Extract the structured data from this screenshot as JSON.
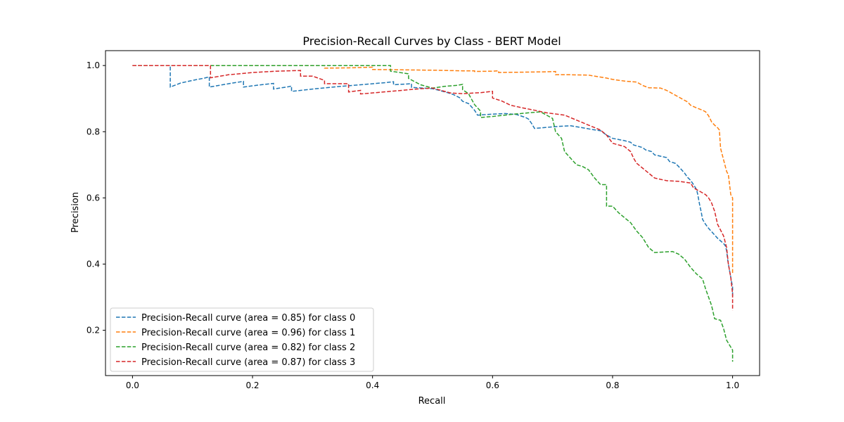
{
  "chart_data": {
    "type": "line",
    "title": "Precision-Recall Curves by Class - BERT Model",
    "xlabel": "Recall",
    "ylabel": "Precision",
    "xlim": [
      -0.045,
      1.045
    ],
    "ylim": [
      0.063,
      1.045
    ],
    "xticks": [
      0.0,
      0.2,
      0.4,
      0.6,
      0.8,
      1.0
    ],
    "xtick_labels": [
      "0.0",
      "0.2",
      "0.4",
      "0.6",
      "0.8",
      "1.0"
    ],
    "yticks": [
      0.2,
      0.4,
      0.6,
      0.8,
      1.0
    ],
    "ytick_labels": [
      "0.2",
      "0.4",
      "0.6",
      "0.8",
      "1.0"
    ],
    "grid": false,
    "legend_position": "lower-left",
    "line_style": "dashed",
    "series": [
      {
        "name": "Precision-Recall curve (area = 0.85) for class 0",
        "color": "#1f77b4",
        "points": [
          [
            0.0,
            1.0
          ],
          [
            0.063,
            1.0
          ],
          [
            0.063,
            0.935
          ],
          [
            0.08,
            0.947
          ],
          [
            0.1,
            0.955
          ],
          [
            0.12,
            0.962
          ],
          [
            0.128,
            0.966
          ],
          [
            0.128,
            0.935
          ],
          [
            0.15,
            0.942
          ],
          [
            0.17,
            0.948
          ],
          [
            0.185,
            0.952
          ],
          [
            0.185,
            0.935
          ],
          [
            0.21,
            0.941
          ],
          [
            0.235,
            0.946
          ],
          [
            0.235,
            0.929
          ],
          [
            0.26,
            0.936
          ],
          [
            0.265,
            0.938
          ],
          [
            0.265,
            0.922
          ],
          [
            0.3,
            0.929
          ],
          [
            0.34,
            0.936
          ],
          [
            0.38,
            0.942
          ],
          [
            0.42,
            0.948
          ],
          [
            0.435,
            0.951
          ],
          [
            0.435,
            0.942
          ],
          [
            0.465,
            0.945
          ],
          [
            0.465,
            0.934
          ],
          [
            0.5,
            0.93
          ],
          [
            0.515,
            0.923
          ],
          [
            0.525,
            0.918
          ],
          [
            0.535,
            0.912
          ],
          [
            0.545,
            0.903
          ],
          [
            0.55,
            0.892
          ],
          [
            0.56,
            0.885
          ],
          [
            0.565,
            0.875
          ],
          [
            0.57,
            0.865
          ],
          [
            0.575,
            0.85
          ],
          [
            0.6,
            0.853
          ],
          [
            0.62,
            0.855
          ],
          [
            0.64,
            0.852
          ],
          [
            0.655,
            0.843
          ],
          [
            0.66,
            0.838
          ],
          [
            0.665,
            0.825
          ],
          [
            0.67,
            0.81
          ],
          [
            0.69,
            0.813
          ],
          [
            0.71,
            0.816
          ],
          [
            0.73,
            0.818
          ],
          [
            0.75,
            0.812
          ],
          [
            0.765,
            0.807
          ],
          [
            0.78,
            0.803
          ],
          [
            0.79,
            0.79
          ],
          [
            0.8,
            0.78
          ],
          [
            0.82,
            0.773
          ],
          [
            0.83,
            0.768
          ],
          [
            0.835,
            0.76
          ],
          [
            0.85,
            0.752
          ],
          [
            0.855,
            0.745
          ],
          [
            0.865,
            0.74
          ],
          [
            0.87,
            0.73
          ],
          [
            0.89,
            0.722
          ],
          [
            0.895,
            0.71
          ],
          [
            0.905,
            0.704
          ],
          [
            0.91,
            0.695
          ],
          [
            0.915,
            0.685
          ],
          [
            0.92,
            0.675
          ],
          [
            0.925,
            0.662
          ],
          [
            0.93,
            0.653
          ],
          [
            0.935,
            0.64
          ],
          [
            0.94,
            0.625
          ],
          [
            0.942,
            0.61
          ],
          [
            0.945,
            0.58
          ],
          [
            0.948,
            0.555
          ],
          [
            0.95,
            0.535
          ],
          [
            0.955,
            0.52
          ],
          [
            0.96,
            0.508
          ],
          [
            0.965,
            0.498
          ],
          [
            0.97,
            0.488
          ],
          [
            0.975,
            0.478
          ],
          [
            0.98,
            0.47
          ],
          [
            0.985,
            0.462
          ],
          [
            0.988,
            0.455
          ],
          [
            0.99,
            0.44
          ],
          [
            0.992,
            0.41
          ],
          [
            0.995,
            0.38
          ],
          [
            0.997,
            0.36
          ],
          [
            1.0,
            0.33
          ],
          [
            1.0,
            0.3
          ]
        ]
      },
      {
        "name": "Precision-Recall curve (area = 0.96) for class 1",
        "color": "#ff7f0e",
        "points": [
          [
            0.0,
            1.0
          ],
          [
            0.32,
            1.0
          ],
          [
            0.32,
            0.992
          ],
          [
            0.36,
            0.993
          ],
          [
            0.38,
            0.994
          ],
          [
            0.4,
            0.995
          ],
          [
            0.4,
            0.988
          ],
          [
            0.45,
            0.987
          ],
          [
            0.5,
            0.986
          ],
          [
            0.55,
            0.984
          ],
          [
            0.57,
            0.984
          ],
          [
            0.57,
            0.982
          ],
          [
            0.6,
            0.983
          ],
          [
            0.61,
            0.984
          ],
          [
            0.61,
            0.979
          ],
          [
            0.65,
            0.98
          ],
          [
            0.69,
            0.981
          ],
          [
            0.705,
            0.982
          ],
          [
            0.705,
            0.972
          ],
          [
            0.73,
            0.972
          ],
          [
            0.76,
            0.971
          ],
          [
            0.77,
            0.968
          ],
          [
            0.79,
            0.962
          ],
          [
            0.8,
            0.958
          ],
          [
            0.82,
            0.953
          ],
          [
            0.84,
            0.95
          ],
          [
            0.845,
            0.945
          ],
          [
            0.85,
            0.94
          ],
          [
            0.86,
            0.933
          ],
          [
            0.88,
            0.932
          ],
          [
            0.89,
            0.925
          ],
          [
            0.9,
            0.915
          ],
          [
            0.91,
            0.905
          ],
          [
            0.92,
            0.895
          ],
          [
            0.925,
            0.89
          ],
          [
            0.93,
            0.88
          ],
          [
            0.94,
            0.872
          ],
          [
            0.95,
            0.865
          ],
          [
            0.955,
            0.86
          ],
          [
            0.96,
            0.848
          ],
          [
            0.965,
            0.83
          ],
          [
            0.97,
            0.82
          ],
          [
            0.975,
            0.812
          ],
          [
            0.978,
            0.805
          ],
          [
            0.98,
            0.75
          ],
          [
            0.985,
            0.715
          ],
          [
            0.99,
            0.68
          ],
          [
            0.993,
            0.67
          ],
          [
            0.995,
            0.64
          ],
          [
            0.997,
            0.61
          ],
          [
            1.0,
            0.6
          ],
          [
            1.0,
            0.37
          ]
        ]
      },
      {
        "name": "Precision-Recall curve (area = 0.82) for class 2",
        "color": "#2ca02c",
        "points": [
          [
            0.0,
            1.0
          ],
          [
            0.43,
            1.0
          ],
          [
            0.43,
            0.983
          ],
          [
            0.46,
            0.975
          ],
          [
            0.46,
            0.961
          ],
          [
            0.48,
            0.942
          ],
          [
            0.5,
            0.932
          ],
          [
            0.52,
            0.937
          ],
          [
            0.54,
            0.94
          ],
          [
            0.55,
            0.943
          ],
          [
            0.55,
            0.927
          ],
          [
            0.56,
            0.915
          ],
          [
            0.565,
            0.898
          ],
          [
            0.57,
            0.882
          ],
          [
            0.58,
            0.862
          ],
          [
            0.58,
            0.843
          ],
          [
            0.6,
            0.846
          ],
          [
            0.63,
            0.852
          ],
          [
            0.66,
            0.857
          ],
          [
            0.68,
            0.86
          ],
          [
            0.7,
            0.84
          ],
          [
            0.705,
            0.8
          ],
          [
            0.715,
            0.78
          ],
          [
            0.72,
            0.74
          ],
          [
            0.73,
            0.72
          ],
          [
            0.74,
            0.7
          ],
          [
            0.75,
            0.695
          ],
          [
            0.76,
            0.685
          ],
          [
            0.77,
            0.66
          ],
          [
            0.78,
            0.64
          ],
          [
            0.79,
            0.64
          ],
          [
            0.79,
            0.575
          ],
          [
            0.8,
            0.575
          ],
          [
            0.81,
            0.555
          ],
          [
            0.82,
            0.54
          ],
          [
            0.83,
            0.525
          ],
          [
            0.84,
            0.5
          ],
          [
            0.85,
            0.48
          ],
          [
            0.86,
            0.45
          ],
          [
            0.87,
            0.435
          ],
          [
            0.9,
            0.438
          ],
          [
            0.91,
            0.43
          ],
          [
            0.92,
            0.415
          ],
          [
            0.93,
            0.39
          ],
          [
            0.94,
            0.37
          ],
          [
            0.95,
            0.355
          ],
          [
            0.955,
            0.325
          ],
          [
            0.965,
            0.275
          ],
          [
            0.97,
            0.235
          ],
          [
            0.98,
            0.23
          ],
          [
            0.985,
            0.205
          ],
          [
            0.99,
            0.17
          ],
          [
            0.995,
            0.155
          ],
          [
            1.0,
            0.14
          ],
          [
            1.0,
            0.105
          ]
        ]
      },
      {
        "name": "Precision-Recall curve (area = 0.87) for class 3",
        "color": "#d62728",
        "points": [
          [
            0.0,
            1.0
          ],
          [
            0.13,
            1.0
          ],
          [
            0.13,
            0.963
          ],
          [
            0.16,
            0.972
          ],
          [
            0.2,
            0.979
          ],
          [
            0.24,
            0.983
          ],
          [
            0.28,
            0.985
          ],
          [
            0.28,
            0.968
          ],
          [
            0.3,
            0.968
          ],
          [
            0.32,
            0.955
          ],
          [
            0.32,
            0.945
          ],
          [
            0.36,
            0.945
          ],
          [
            0.36,
            0.92
          ],
          [
            0.38,
            0.925
          ],
          [
            0.38,
            0.914
          ],
          [
            0.43,
            0.922
          ],
          [
            0.48,
            0.93
          ],
          [
            0.5,
            0.932
          ],
          [
            0.53,
            0.917
          ],
          [
            0.55,
            0.915
          ],
          [
            0.58,
            0.918
          ],
          [
            0.6,
            0.922
          ],
          [
            0.6,
            0.902
          ],
          [
            0.615,
            0.893
          ],
          [
            0.63,
            0.88
          ],
          [
            0.65,
            0.872
          ],
          [
            0.67,
            0.865
          ],
          [
            0.69,
            0.857
          ],
          [
            0.72,
            0.85
          ],
          [
            0.74,
            0.835
          ],
          [
            0.76,
            0.82
          ],
          [
            0.78,
            0.805
          ],
          [
            0.79,
            0.79
          ],
          [
            0.8,
            0.765
          ],
          [
            0.82,
            0.755
          ],
          [
            0.83,
            0.74
          ],
          [
            0.835,
            0.72
          ],
          [
            0.84,
            0.705
          ],
          [
            0.85,
            0.69
          ],
          [
            0.86,
            0.675
          ],
          [
            0.87,
            0.66
          ],
          [
            0.89,
            0.652
          ],
          [
            0.91,
            0.65
          ],
          [
            0.93,
            0.645
          ],
          [
            0.935,
            0.63
          ],
          [
            0.945,
            0.62
          ],
          [
            0.955,
            0.61
          ],
          [
            0.96,
            0.6
          ],
          [
            0.965,
            0.585
          ],
          [
            0.97,
            0.56
          ],
          [
            0.975,
            0.52
          ],
          [
            0.985,
            0.485
          ],
          [
            0.99,
            0.45
          ],
          [
            0.993,
            0.4
          ],
          [
            0.997,
            0.36
          ],
          [
            1.0,
            0.31
          ],
          [
            1.0,
            0.26
          ]
        ]
      }
    ]
  }
}
